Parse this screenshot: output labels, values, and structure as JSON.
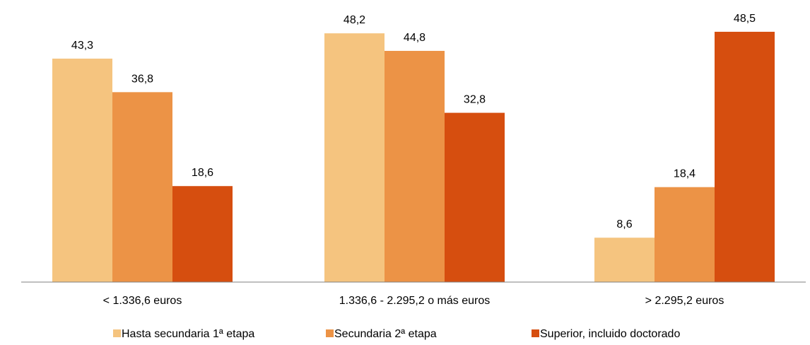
{
  "chart_data": {
    "type": "bar",
    "title": "",
    "xlabel": "",
    "ylabel": "",
    "ylim": [
      0,
      50
    ],
    "grid": false,
    "legend_position": "bottom",
    "categories": [
      "< 1.336,6 euros",
      "1.336,6 - 2.295,2 o más euros",
      "> 2.295,2 euros"
    ],
    "series": [
      {
        "name": "Hasta secundaria 1ª etapa",
        "color": "#F5C47F",
        "values": [
          43.3,
          48.2,
          8.6
        ],
        "labels": [
          "43,3",
          "48,2",
          "8,6"
        ]
      },
      {
        "name": "Secundaria 2ª etapa",
        "color": "#EC9346",
        "values": [
          36.8,
          44.8,
          18.4
        ],
        "labels": [
          "36,8",
          "44,8",
          "18,4"
        ]
      },
      {
        "name": "Superior, incluido doctorado",
        "color": "#D64E0F",
        "values": [
          18.6,
          32.8,
          48.5
        ],
        "labels": [
          "18,6",
          "32,8",
          "48,5"
        ]
      }
    ]
  }
}
